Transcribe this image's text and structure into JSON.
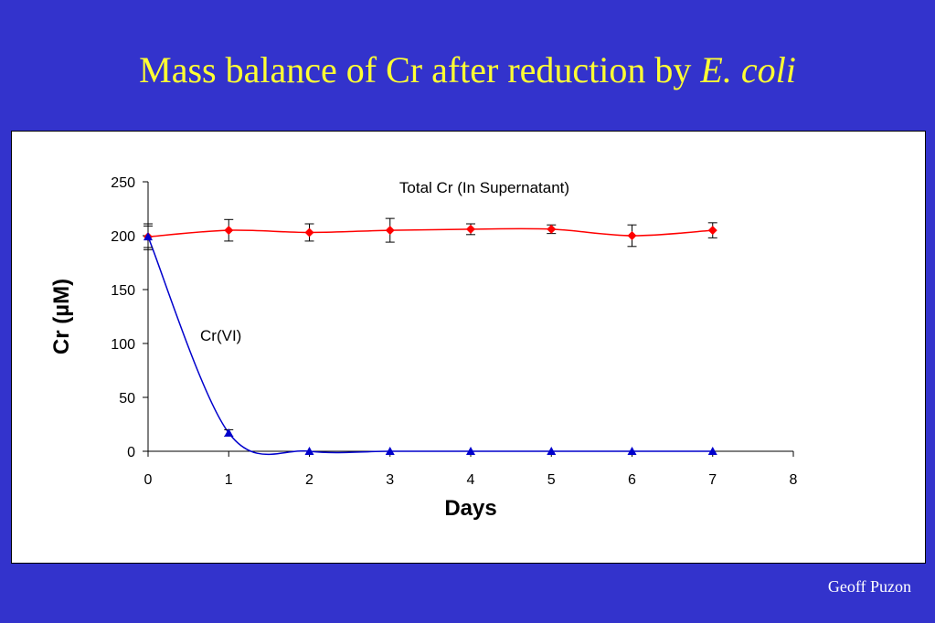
{
  "slide": {
    "title_main": "Mass balance of Cr after reduction by ",
    "title_italic": "E. coli",
    "credit": "Geoff Puzon"
  },
  "chart_data": {
    "type": "line",
    "xlabel": "Days",
    "ylabel": "Cr (µM)",
    "xlim": [
      0,
      8
    ],
    "ylim": [
      0,
      250
    ],
    "x_ticks": [
      0,
      1,
      2,
      3,
      4,
      5,
      6,
      7,
      8
    ],
    "y_ticks": [
      0,
      50,
      100,
      150,
      200,
      250
    ],
    "grid": false,
    "legend": "none",
    "annotations": [
      {
        "text": "Total Cr (In Supernatant)",
        "series": 0
      },
      {
        "text": "Cr(VI)",
        "series": 1
      }
    ],
    "series": [
      {
        "color": "#ff0000",
        "marker": "diamond",
        "x": [
          0,
          1,
          2,
          3,
          4,
          5,
          6,
          7
        ],
        "y": [
          199,
          205,
          203,
          205,
          206,
          206,
          200,
          205
        ],
        "error": [
          12,
          10,
          8,
          11,
          5,
          4,
          10,
          7
        ]
      },
      {
        "color": "#0000cc",
        "marker": "triangle",
        "x": [
          0,
          1,
          2,
          3,
          4,
          5,
          6,
          7
        ],
        "y": [
          199,
          17,
          0,
          0,
          0,
          0,
          0,
          0
        ],
        "error": [
          10,
          3,
          0,
          0,
          0,
          0,
          0,
          0
        ]
      }
    ]
  }
}
